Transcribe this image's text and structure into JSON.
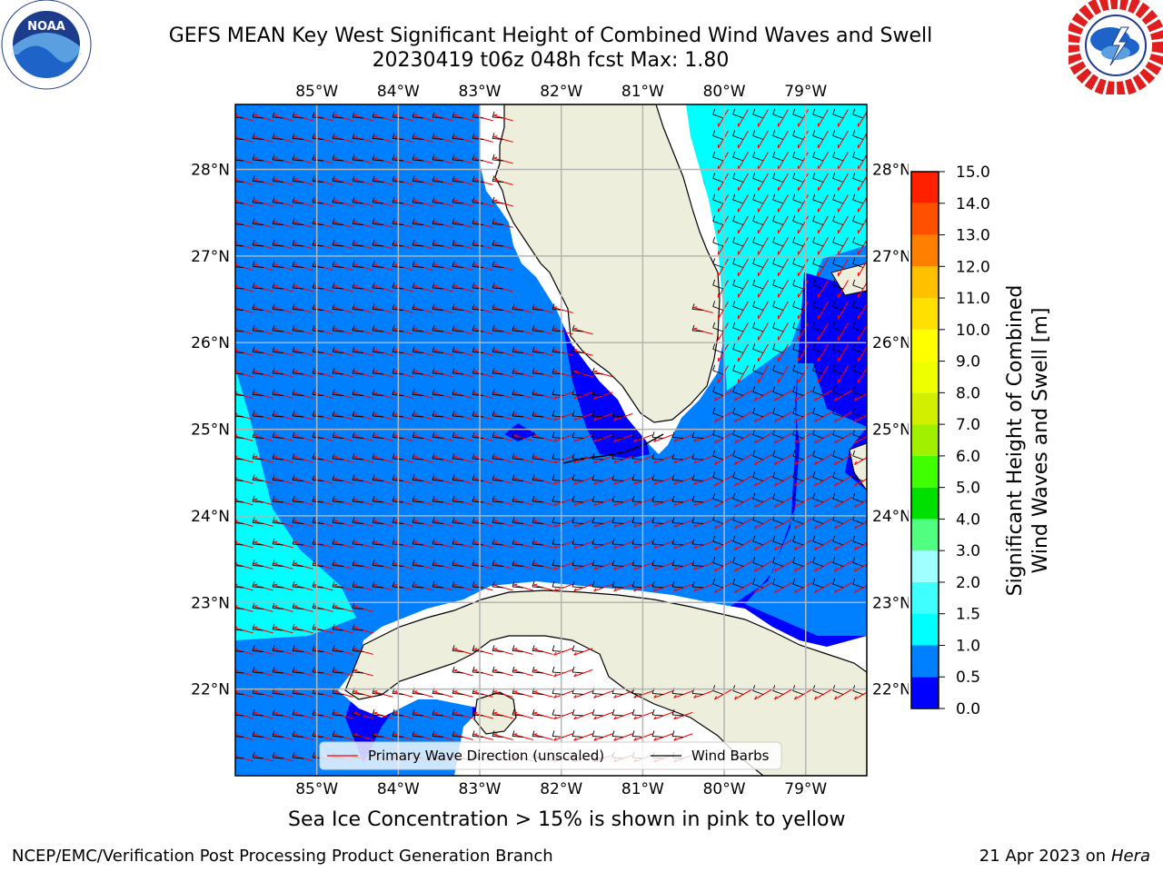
{
  "title": {
    "line1": "GEFS MEAN Key West Significant Height of Combined Wind Waves and Swell",
    "line2": "20230419 t06z 048h fcst   Max: 1.80"
  },
  "logos": {
    "left": {
      "name": "noaa-logo",
      "text": "NOAA",
      "ring_text": "NATIONAL OCEANIC AND ATMOSPHERIC ADMINISTRATION · U.S. DEPARTMENT OF COMMERCE"
    },
    "right": {
      "name": "nws-logo",
      "ring_text": "NATIONAL WEATHER SERVICE"
    }
  },
  "map": {
    "lon_labels": [
      "85°W",
      "84°W",
      "83°W",
      "82°W",
      "81°W",
      "80°W",
      "79°W"
    ],
    "lat_labels": [
      "28°N",
      "27°N",
      "26°N",
      "25°N",
      "24°N",
      "23°N",
      "22°N"
    ],
    "lon_range": [
      -86.0,
      -78.25
    ],
    "lat_range": [
      21.0,
      28.75
    ],
    "land_color": "#eeeedc",
    "legend": [
      {
        "label": "Primary Wave Direction (unscaled)",
        "color": "#ff0000"
      },
      {
        "label": "Wind Barbs",
        "color": "#000000"
      }
    ]
  },
  "colorbar": {
    "label_line1": "Significant Height of Combined",
    "label_line2": "Wind Waves and Swell [m]",
    "ticks": [
      "0.0",
      "0.5",
      "1.0",
      "1.5",
      "2.0",
      "3.0",
      "4.0",
      "5.0",
      "6.0",
      "7.0",
      "8.0",
      "9.0",
      "10.0",
      "11.0",
      "12.0",
      "13.0",
      "14.0",
      "15.0"
    ],
    "colors": [
      "#0000ff",
      "#0080ff",
      "#00ffff",
      "#40ffff",
      "#a0ffff",
      "#50ff80",
      "#00e000",
      "#40ff00",
      "#a0f000",
      "#d0f000",
      "#eeff00",
      "#ffff00",
      "#ffe000",
      "#ffc000",
      "#ff8000",
      "#ff5000",
      "#ff2000"
    ]
  },
  "caption": "Sea Ice Concentration > 15% is shown in pink to yellow",
  "footer": {
    "left": "NCEP/EMC/Verification Post Processing Product Generation Branch",
    "right_prefix": "21 Apr 2023 on ",
    "right_host": "Hera"
  }
}
